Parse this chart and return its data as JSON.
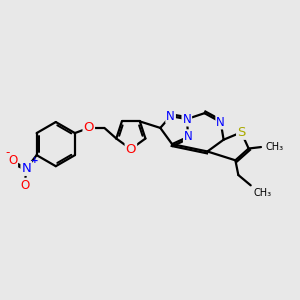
{
  "background_color": "#e8e8e8",
  "bond_color": "#000000",
  "bond_width": 1.6,
  "atom_colors": {
    "N": "#0000ff",
    "O": "#ff0000",
    "S": "#aaaa00",
    "C": "#000000"
  },
  "font_size": 8.5,
  "fig_size": [
    3.0,
    3.0
  ],
  "dpi": 100
}
